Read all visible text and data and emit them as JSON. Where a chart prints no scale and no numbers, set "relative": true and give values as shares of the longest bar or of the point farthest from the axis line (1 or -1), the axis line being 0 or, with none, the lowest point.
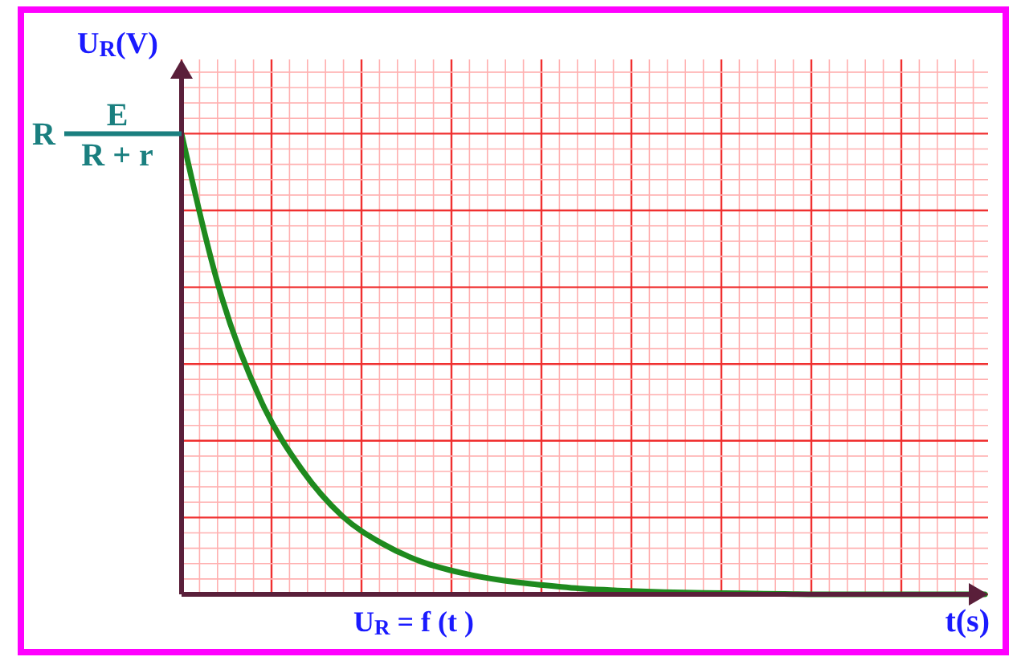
{
  "chart_data": {
    "type": "line",
    "relative": true,
    "ylabel": "U$_{R}$(V)",
    "xlabel": "t(s)",
    "grid": true,
    "marker": "none",
    "line_style": "solid",
    "categories": [
      null,
      null,
      null,
      null,
      null,
      null,
      null,
      null,
      null,
      null,
      null,
      null,
      null,
      null,
      null,
      null,
      null,
      null,
      null,
      null,
      null
    ],
    "series": [
      {
        "color": "#1e8a1e",
        "values": [
          1,
          0.645,
          0.416,
          0.27,
          0.17,
          0.11,
          0.07,
          0.046,
          0.03,
          0.02,
          0.012,
          0.008,
          0.005,
          0.003,
          0.002,
          0.001,
          0,
          0,
          0,
          0,
          0
        ]
      }
    ],
    "annotations": [
      "R",
      "E",
      "R + r",
      "U$_{R}$ = f (t )"
    ]
  }
}
